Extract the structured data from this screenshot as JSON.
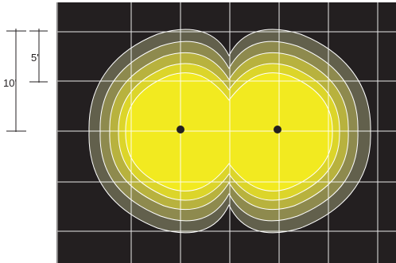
{
  "scale": {
    "small_label": "5'",
    "large_label": "10'"
  },
  "colors": {
    "background": "#231f20",
    "grid": "#ffffff",
    "contour_outline": "#ffffff",
    "level_1": "#62604c",
    "level_2": "#8e8a4e",
    "level_3": "#b8b23e",
    "level_4": "#dcd52a",
    "level_5": "#f2ea20",
    "fixture": "#231f20",
    "scale_ink": "#231f20"
  },
  "fixtures": [
    {
      "name": "fixture-left"
    },
    {
      "name": "fixture-right"
    }
  ]
}
